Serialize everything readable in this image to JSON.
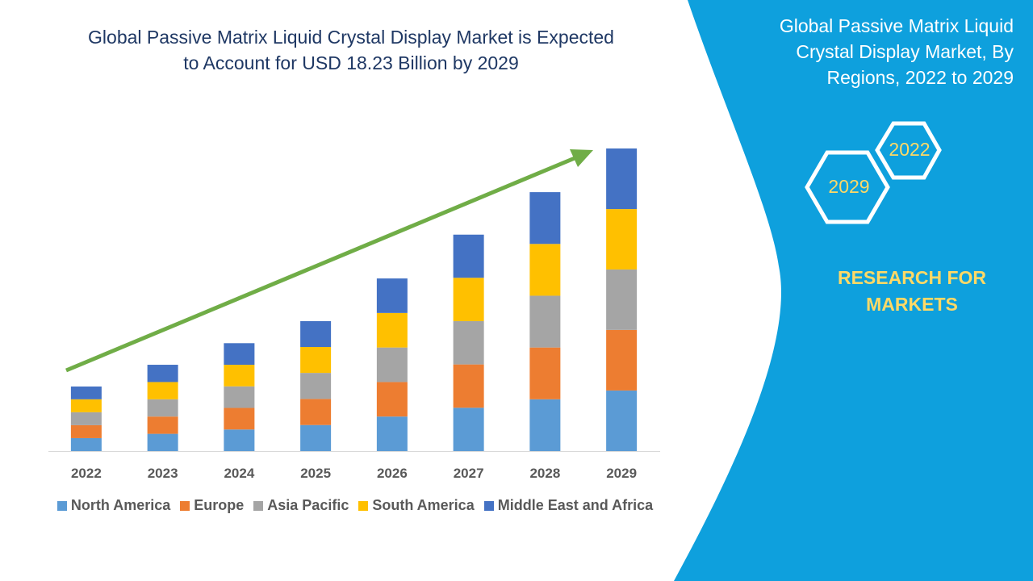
{
  "header": {
    "title_line1": "Global Passive Matrix Liquid Crystal Display Market is Expected",
    "title_line2": "to Account for USD 18.23 Billion by 2029"
  },
  "side_panel": {
    "title_line1": "Global Passive Matrix Liquid",
    "title_line2": "Crystal Display Market, By",
    "title_line3": "Regions, 2022 to 2029",
    "hex_start": "2022",
    "hex_end": "2029",
    "brand_line1": "RESEARCH FOR",
    "brand_line2": "MARKETS",
    "panel_color": "#0ea0dd",
    "accent_color": "#ffd966"
  },
  "chart_data": {
    "type": "bar",
    "stacked": true,
    "title": "",
    "xlabel": "",
    "ylabel": "",
    "ylim": [
      0,
      18.23
    ],
    "grid": false,
    "legend_placement": "bottom",
    "trend_arrow": true,
    "trend_arrow_color": "#70ad47",
    "categories": [
      "2022",
      "2023",
      "2024",
      "2025",
      "2026",
      "2027",
      "2028",
      "2029"
    ],
    "series": [
      {
        "name": "North America",
        "color": "#5b9bd5",
        "values": [
          0.78,
          1.04,
          1.3,
          1.57,
          2.08,
          2.61,
          3.12,
          3.65
        ]
      },
      {
        "name": "Europe",
        "color": "#ed7d31",
        "values": [
          0.78,
          1.04,
          1.3,
          1.57,
          2.08,
          2.61,
          3.12,
          3.65
        ]
      },
      {
        "name": "Asia Pacific",
        "color": "#a5a5a5",
        "values": [
          0.78,
          1.04,
          1.3,
          1.57,
          2.08,
          2.61,
          3.12,
          3.64
        ]
      },
      {
        "name": "South America",
        "color": "#ffc000",
        "values": [
          0.78,
          1.04,
          1.3,
          1.56,
          2.08,
          2.61,
          3.12,
          3.64
        ]
      },
      {
        "name": "Middle East and Africa",
        "color": "#4472c4",
        "values": [
          0.77,
          1.04,
          1.3,
          1.56,
          2.08,
          2.6,
          3.12,
          3.65
        ]
      }
    ]
  }
}
